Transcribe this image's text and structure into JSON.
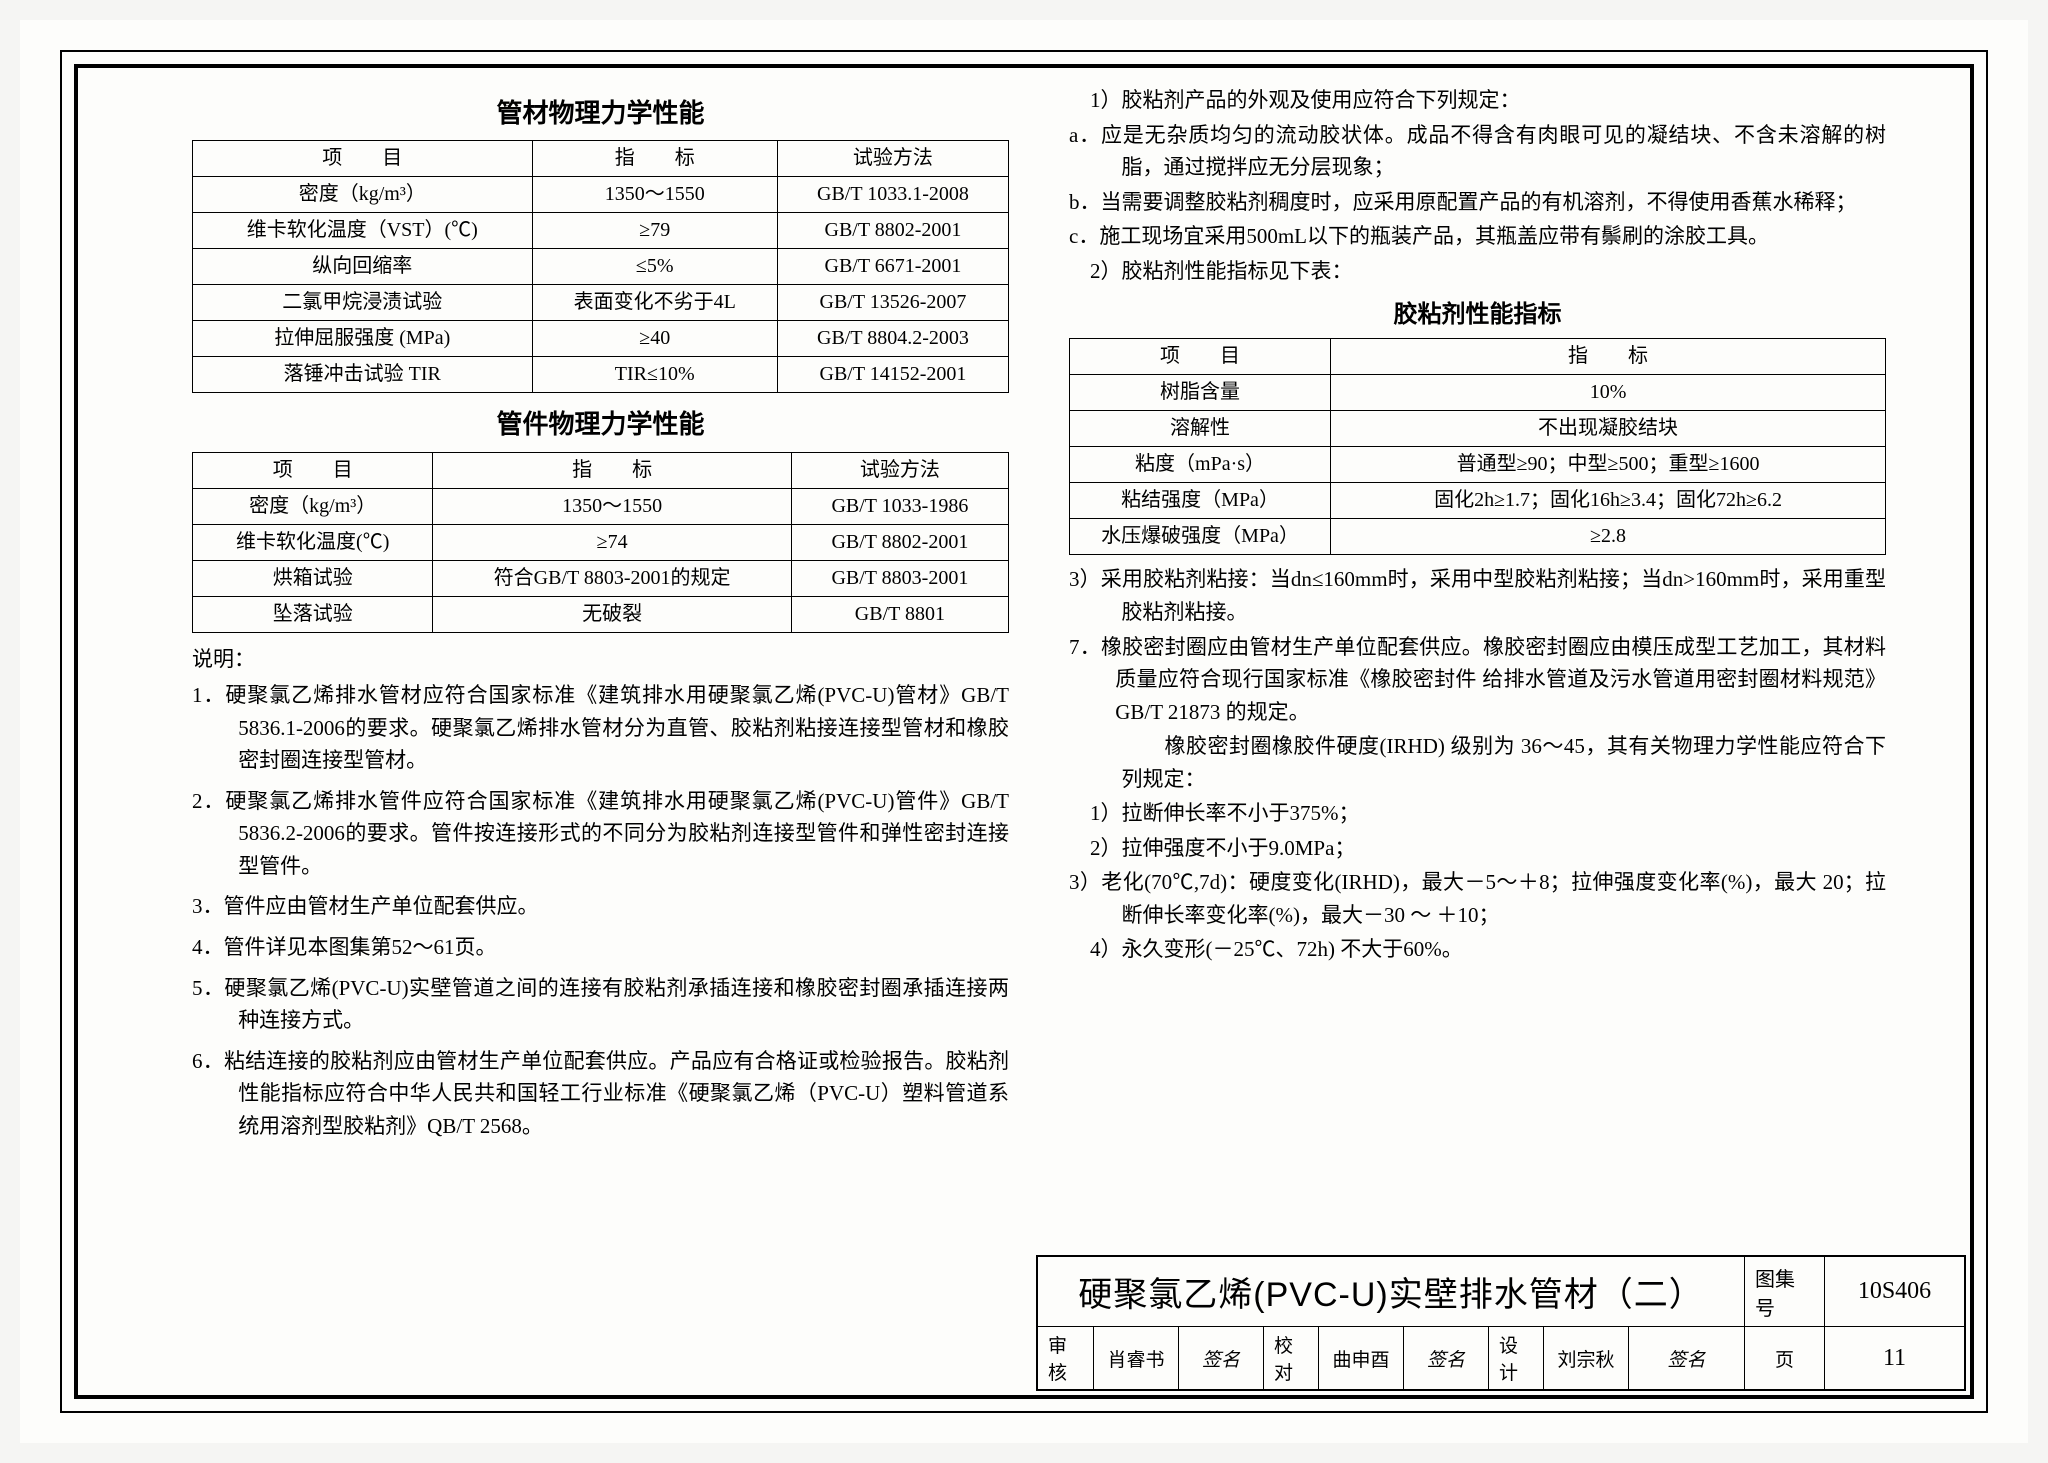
{
  "tables": {
    "t1": {
      "title": "管材物理力学性能",
      "headers": [
        "项　　目",
        "指　　标",
        "试验方法"
      ],
      "rows": [
        [
          "密度（kg/m³）",
          "1350～1550",
          "GB/T 1033.1-2008"
        ],
        [
          "维卡软化温度（VST）(℃)",
          "≥79",
          "GB/T 8802-2001"
        ],
        [
          "纵向回缩率",
          "≤5%",
          "GB/T 6671-2001"
        ],
        [
          "二氯甲烷浸渍试验",
          "表面变化不劣于4L",
          "GB/T 13526-2007"
        ],
        [
          "拉伸屈服强度 (MPa)",
          "≥40",
          "GB/T 8804.2-2003"
        ],
        [
          "落锤冲击试验 TIR",
          "TIR≤10%",
          "GB/T 14152-2001"
        ]
      ]
    },
    "t2": {
      "title": "管件物理力学性能",
      "headers": [
        "项　　目",
        "指　　标",
        "试验方法"
      ],
      "rows": [
        [
          "密度（kg/m³）",
          "1350～1550",
          "GB/T 1033-1986"
        ],
        [
          "维卡软化温度(℃)",
          "≥74",
          "GB/T 8802-2001"
        ],
        [
          "烘箱试验",
          "符合GB/T 8803-2001的规定",
          "GB/T 8803-2001"
        ],
        [
          "坠落试验",
          "无破裂",
          "GB/T 8801"
        ]
      ]
    },
    "t3": {
      "title": "胶粘剂性能指标",
      "headers": [
        "项　　目",
        "指　　标"
      ],
      "rows": [
        [
          "树脂含量",
          "10%"
        ],
        [
          "溶解性",
          "不出现凝胶结块"
        ],
        [
          "粘度（mPa·s）",
          "普通型≥90；中型≥500；重型≥1600"
        ],
        [
          "粘结强度（MPa）",
          "固化2h≥1.7；固化16h≥3.4；固化72h≥6.2"
        ],
        [
          "水压爆破强度（MPa）",
          "≥2.8"
        ]
      ]
    }
  },
  "notes_left": {
    "lead": "说明：",
    "items": [
      "1．硬聚氯乙烯排水管材应符合国家标准《建筑排水用硬聚氯乙烯(PVC-U)管材》GB/T 5836.1-2006的要求。硬聚氯乙烯排水管材分为直管、胶粘剂粘接连接型管材和橡胶密封圈连接型管材。",
      "2．硬聚氯乙烯排水管件应符合国家标准《建筑排水用硬聚氯乙烯(PVC-U)管件》GB/T 5836.2-2006的要求。管件按连接形式的不同分为胶粘剂连接型管件和弹性密封连接型管件。",
      "3．管件应由管材生产单位配套供应。",
      "4．管件详见本图集第52～61页。",
      "5．硬聚氯乙烯(PVC-U)实壁管道之间的连接有胶粘剂承插连接和橡胶密封圈承插连接两种连接方式。",
      "6．粘结连接的胶粘剂应由管材生产单位配套供应。产品应有合格证或检验报告。胶粘剂性能指标应符合中华人民共和国轻工行业标准《硬聚氯乙烯（PVC-U）塑料管道系统用溶剂型胶粘剂》QB/T 2568。"
    ]
  },
  "right": {
    "r1_lead": "1）胶粘剂产品的外观及使用应符合下列规定：",
    "r1_a": "a．应是无杂质均匀的流动胶状体。成品不得含有肉眼可见的凝结块、不含未溶解的树脂，通过搅拌应无分层现象；",
    "r1_b": "b．当需要调整胶粘剂稠度时，应采用原配置产品的有机溶剂，不得使用香蕉水稀释；",
    "r1_c": "c．施工现场宜采用500mL以下的瓶装产品，其瓶盖应带有鬃刷的涂胶工具。",
    "r2": "2）胶粘剂性能指标见下表：",
    "r3": "3）采用胶粘剂粘接：当dn≤160mm时，采用中型胶粘剂粘接；当dn>160mm时，采用重型胶粘剂粘接。",
    "n7": "7．橡胶密封圈应由管材生产单位配套供应。橡胶密封圈应由模压成型工艺加工，其材料质量应符合现行国家标准《橡胶密封件 给排水管道及污水管道用密封圈材料规范》GB/T 21873 的规定。",
    "n7b": "　　橡胶密封圈橡胶件硬度(IRHD) 级别为 36～45，其有关物理力学性能应符合下列规定：",
    "s1": "1）拉断伸长率不小于375%；",
    "s2": "2）拉伸强度不小于9.0MPa；",
    "s3": "3）老化(70℃,7d)：硬度变化(IRHD)，最大－5～＋8；拉伸强度变化率(%)，最大 20；拉断伸长率变化率(%)，最大－30 ～ ＋10；",
    "s4": "4）永久变形(－25℃、72h) 不大于60%。"
  },
  "titleblock": {
    "main": "硬聚氯乙烯(PVC-U)实壁排水管材（二）",
    "atlas_lbl": "图集号",
    "atlas_val": "10S406",
    "row2": {
      "c1l": "审核",
      "c1v": "肖睿书",
      "c2v": "签名",
      "c3l": "校对",
      "c3v": "曲申酉",
      "c4v": "签名",
      "c5l": "设计",
      "c5v": "刘宗秋",
      "c6v": "签名",
      "pl": "页",
      "pv": "11"
    }
  }
}
